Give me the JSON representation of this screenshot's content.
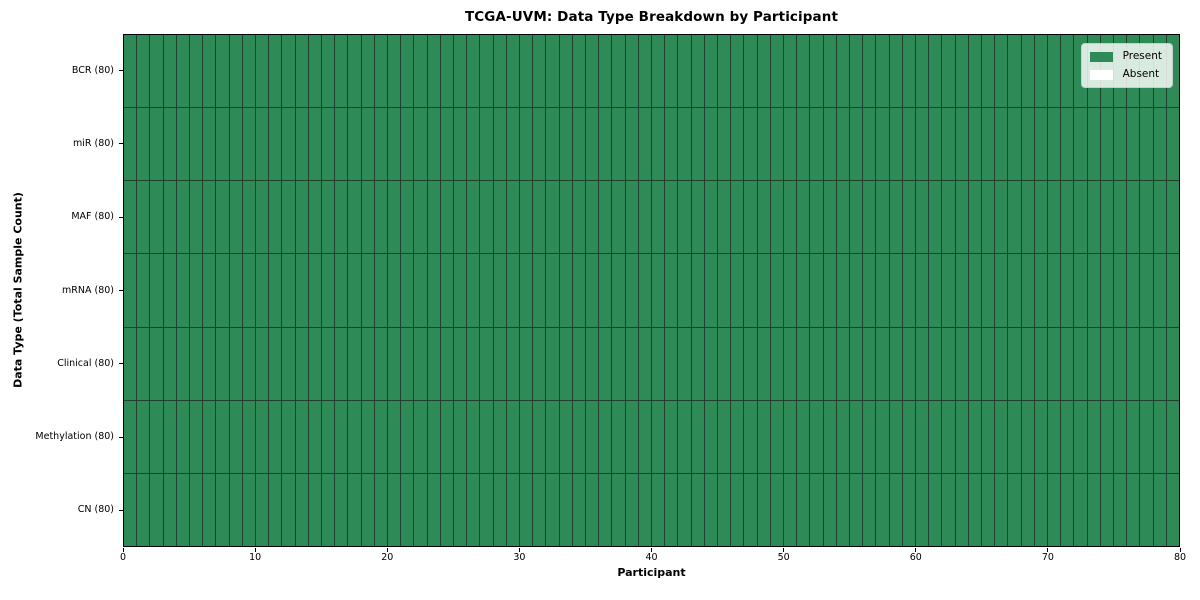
{
  "chart_data": {
    "type": "heatmap",
    "title": "TCGA-UVM: Data Type Breakdown by Participant",
    "xlabel": "Participant",
    "ylabel": "Data Type (Total Sample Count)",
    "xlim": [
      0,
      80
    ],
    "x_ticks": [
      0,
      10,
      20,
      30,
      40,
      50,
      60,
      70,
      80
    ],
    "n_participants": 80,
    "rows": [
      {
        "label": "BCR (80)",
        "total": 80,
        "present": 80,
        "absent": 0
      },
      {
        "label": "miR (80)",
        "total": 80,
        "present": 80,
        "absent": 0
      },
      {
        "label": "MAF (80)",
        "total": 80,
        "present": 80,
        "absent": 0
      },
      {
        "label": "mRNA (80)",
        "total": 80,
        "present": 80,
        "absent": 0
      },
      {
        "label": "Clinical (80)",
        "total": 80,
        "present": 80,
        "absent": 0
      },
      {
        "label": "Methylation (80)",
        "total": 80,
        "present": 80,
        "absent": 0
      },
      {
        "label": "CN (80)",
        "total": 80,
        "present": 80,
        "absent": 0
      }
    ],
    "legend": {
      "position": "upper right",
      "entries": [
        {
          "label": "Present",
          "color": "#2e8b57"
        },
        {
          "label": "Absent",
          "color": "#ffffff"
        }
      ]
    },
    "colors": {
      "present": "#2e8b57",
      "absent": "#ffffff",
      "cell_border": "#21402d",
      "axis": "#000000",
      "background": "#ffffff"
    }
  }
}
